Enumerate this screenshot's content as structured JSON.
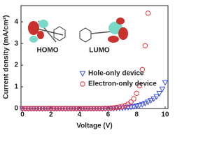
{
  "chart_data": {
    "type": "scatter",
    "xlabel": "Voltage (V)",
    "ylabel": "Current density (mA/cm²)",
    "x": [
      0,
      0.2,
      0.4,
      0.6,
      0.8,
      1,
      1.2,
      1.4,
      1.6,
      1.8,
      2,
      2.2,
      2.4,
      2.6,
      2.8,
      3,
      3.2,
      3.4,
      3.6,
      3.8,
      4,
      4.2,
      4.4,
      4.6,
      4.8,
      5,
      5.2,
      5.4,
      5.6,
      5.8,
      6,
      6.2,
      6.4,
      6.6,
      6.8,
      7,
      7.2,
      7.4,
      7.6,
      7.8,
      8,
      8.2,
      8.4,
      8.6,
      8.8,
      9,
      9.2,
      9.4,
      9.6,
      9.8,
      10
    ],
    "series": [
      {
        "name": "Hole-only device",
        "color": "#3a4fe0",
        "marker": "triangle-down",
        "values": [
          0,
          0,
          0,
          0,
          0,
          0,
          0,
          0,
          0,
          0,
          0,
          0,
          0,
          0,
          0,
          0,
          0,
          0,
          0,
          0,
          0,
          0,
          0,
          0,
          0,
          0,
          0,
          0,
          0,
          0,
          0,
          0.01,
          0.01,
          0.02,
          0.02,
          0.03,
          0.04,
          0.05,
          0.07,
          0.09,
          0.12,
          0.15,
          0.19,
          0.24,
          0.3,
          0.37,
          0.45,
          0.55,
          0.7,
          0.9,
          1.2
        ]
      },
      {
        "name": "Electron-only device",
        "color": "#e8333a",
        "marker": "circle",
        "values": [
          0,
          0,
          0,
          0,
          0,
          0,
          0,
          0,
          0,
          0,
          0,
          0,
          0,
          0,
          0,
          0,
          0,
          0,
          0,
          0,
          0,
          0,
          0,
          0,
          0,
          0,
          0,
          0,
          0,
          0.01,
          0.01,
          0.02,
          0.03,
          0.05,
          0.07,
          0.1,
          0.14,
          0.2,
          0.3,
          0.45,
          0.7,
          1.05,
          1.8,
          2.9,
          4.4,
          null,
          null,
          null,
          null,
          null,
          null
        ]
      }
    ],
    "xlim": [
      -0.1,
      10.2
    ],
    "xticks": [
      0,
      2,
      4,
      6,
      8,
      10
    ],
    "ylim": [
      0,
      4.75
    ],
    "yticks": [
      0,
      1,
      2,
      3,
      4
    ],
    "legend_loc": "center right",
    "annotations": [
      "HOMO",
      "LUMO"
    ]
  }
}
